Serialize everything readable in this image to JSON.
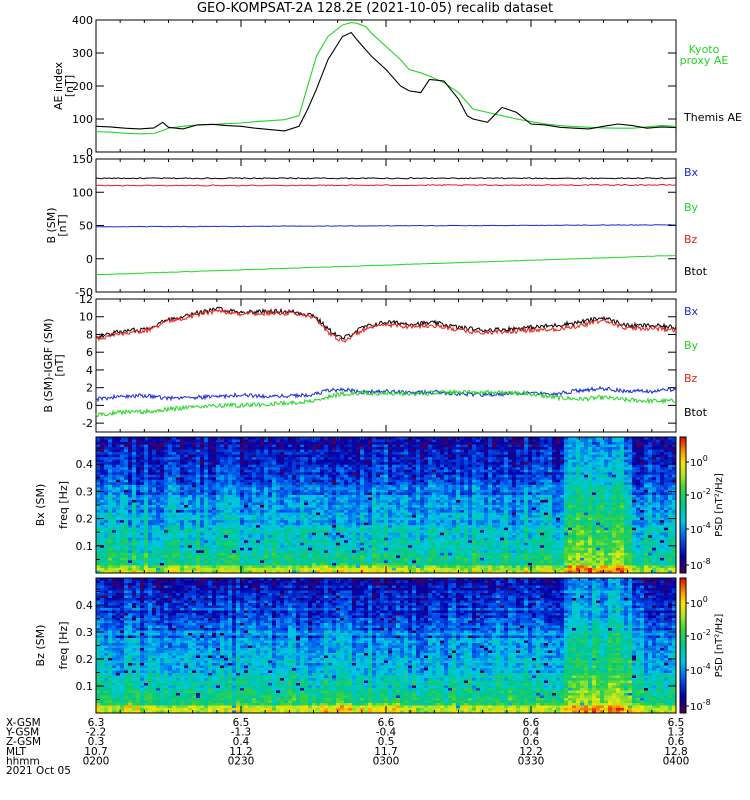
{
  "title": "GEO-KOMPSAT-2A 128.2E (2021-10-05) recalib dataset",
  "colors": {
    "black": "#000000",
    "red": "#e8201a",
    "green": "#22d622",
    "blue": "#1a2ad6",
    "lightgreen": "#33e833"
  },
  "chart_data": [
    {
      "type": "line",
      "panel": "ae",
      "ylabel": "AE index",
      "yunit": "[nT]",
      "ylim": [
        0,
        400
      ],
      "yticks": [
        0,
        100,
        200,
        300,
        400
      ],
      "x_hours": [
        2.0,
        2.05,
        2.1,
        2.15,
        2.2,
        2.23,
        2.25,
        2.3,
        2.35,
        2.4,
        2.45,
        2.5,
        2.55,
        2.6,
        2.65,
        2.7,
        2.73,
        2.76,
        2.8,
        2.85,
        2.88,
        2.9,
        2.93,
        2.95,
        3.0,
        3.05,
        3.08,
        3.12,
        3.15,
        3.2,
        3.25,
        3.28,
        3.3,
        3.35,
        3.4,
        3.45,
        3.5,
        3.55,
        3.6,
        3.65,
        3.7,
        3.75,
        3.8,
        3.85,
        3.9,
        3.95,
        4.0
      ],
      "series": [
        {
          "name": "Kyoto proxy AE",
          "legend": [
            "Kyoto",
            "proxy AE"
          ],
          "color": "green",
          "values": [
            62,
            60,
            57,
            55,
            56,
            65,
            72,
            78,
            82,
            83,
            86,
            88,
            92,
            95,
            98,
            110,
            200,
            290,
            350,
            385,
            392,
            390,
            380,
            360,
            320,
            280,
            250,
            240,
            230,
            210,
            180,
            150,
            130,
            120,
            110,
            100,
            92,
            85,
            80,
            77,
            75,
            73,
            72,
            72,
            76,
            80,
            78
          ]
        },
        {
          "name": "Themis AE",
          "legend": [
            "Themis AE"
          ],
          "color": "black",
          "values": [
            78,
            76,
            72,
            70,
            73,
            90,
            75,
            70,
            82,
            84,
            80,
            78,
            72,
            68,
            64,
            78,
            130,
            190,
            280,
            350,
            362,
            340,
            310,
            290,
            250,
            200,
            185,
            180,
            220,
            215,
            160,
            110,
            100,
            90,
            135,
            120,
            85,
            82,
            75,
            72,
            70,
            78,
            85,
            80,
            72,
            76,
            74
          ]
        }
      ]
    },
    {
      "type": "line",
      "panel": "b",
      "ylabel": "B (SM)",
      "yunit": "[nT]",
      "ylim": [
        -50,
        150
      ],
      "yticks": [
        -50,
        0,
        50,
        100,
        150
      ],
      "legend": [
        {
          "name": "Bx",
          "color": "blue"
        },
        {
          "name": "By",
          "color": "green"
        },
        {
          "name": "Bz",
          "color": "red"
        },
        {
          "name": "Btot",
          "color": "black"
        }
      ],
      "series": [
        {
          "name": "Btot",
          "color": "black",
          "start": 121,
          "end": 121,
          "noise": 0.8
        },
        {
          "name": "Bz",
          "color": "red",
          "start": 110,
          "end": 111,
          "noise": 0.8
        },
        {
          "name": "Bx",
          "color": "blue",
          "start": 48,
          "end": 51,
          "noise": 0.4
        },
        {
          "name": "By",
          "color": "green",
          "start": -24,
          "end": 5,
          "noise": 0.3
        }
      ]
    },
    {
      "type": "line",
      "panel": "db",
      "ylabel": "B (SM)-IGRF (SM)",
      "yunit": "[nT]",
      "ylim": [
        -3,
        12
      ],
      "yticks": [
        -2,
        0,
        2,
        4,
        6,
        8,
        10,
        12
      ],
      "legend": [
        {
          "name": "Bx",
          "color": "blue"
        },
        {
          "name": "By",
          "color": "green"
        },
        {
          "name": "Bz",
          "color": "red"
        },
        {
          "name": "Btot",
          "color": "black"
        }
      ],
      "x_hours": [
        2.0,
        2.08,
        2.17,
        2.25,
        2.33,
        2.42,
        2.5,
        2.58,
        2.67,
        2.75,
        2.8,
        2.85,
        2.92,
        3.0,
        3.08,
        3.17,
        3.25,
        3.33,
        3.42,
        3.5,
        3.58,
        3.67,
        3.75,
        3.83,
        3.92,
        4.0
      ],
      "series": [
        {
          "name": "Btot",
          "color": "black",
          "noise": 0.25,
          "values": [
            7.7,
            8.3,
            8.6,
            9.7,
            10.3,
            10.9,
            10.5,
            10.6,
            10.6,
            10.2,
            8.6,
            7.5,
            8.8,
            9.4,
            9.2,
            9.3,
            8.8,
            8.5,
            8.6,
            8.8,
            9.0,
            9.4,
            9.9,
            9.0,
            9.0,
            8.8
          ]
        },
        {
          "name": "Bz",
          "color": "red",
          "noise": 0.25,
          "values": [
            7.5,
            8.1,
            8.4,
            9.5,
            10.1,
            10.7,
            10.3,
            10.4,
            10.4,
            10.0,
            8.3,
            7.2,
            8.5,
            9.1,
            8.9,
            9.0,
            8.5,
            8.2,
            8.3,
            8.5,
            8.6,
            9.0,
            9.6,
            8.7,
            8.7,
            8.5
          ]
        },
        {
          "name": "Bx",
          "color": "blue",
          "noise": 0.22,
          "values": [
            0.7,
            1.0,
            1.1,
            0.8,
            0.9,
            1.0,
            1.2,
            1.0,
            1.1,
            1.2,
            1.7,
            1.8,
            1.5,
            1.6,
            1.4,
            1.5,
            1.3,
            1.2,
            1.3,
            1.5,
            1.3,
            1.7,
            1.9,
            1.6,
            1.6,
            1.8
          ]
        },
        {
          "name": "By",
          "color": "green",
          "noise": 0.25,
          "values": [
            -1.1,
            -0.8,
            -0.7,
            -0.4,
            -0.2,
            0.0,
            0.0,
            0.1,
            0.3,
            0.5,
            1.0,
            1.3,
            1.4,
            1.3,
            1.3,
            1.4,
            1.5,
            1.5,
            1.4,
            1.3,
            0.9,
            0.7,
            0.9,
            0.6,
            0.5,
            0.5
          ]
        }
      ]
    },
    {
      "type": "heatmap",
      "panel": "bx_spec",
      "ylabel": "Bx (SM)",
      "yunit": "freq [Hz]",
      "ylim": [
        0,
        0.5
      ],
      "yticks": [
        0.1,
        0.2,
        0.3,
        0.4
      ],
      "colorbar": {
        "label": "PSD [nT²/Hz]",
        "ticks": [
          "10^0",
          "10^-2",
          "10^-4",
          "10^-8"
        ]
      }
    },
    {
      "type": "heatmap",
      "panel": "bz_spec",
      "ylabel": "Bz (SM)",
      "yunit": "freq [Hz]",
      "ylim": [
        0,
        0.5
      ],
      "yticks": [
        0.1,
        0.2,
        0.3,
        0.4
      ],
      "colorbar": {
        "label": "PSD [nT²/Hz]",
        "ticks": [
          "10^0",
          "10^-2",
          "10^-4",
          "10^-8"
        ]
      }
    }
  ],
  "footer": {
    "rows": [
      {
        "label": "X-GSM",
        "values": [
          "6.3",
          "6.5",
          "6.6",
          "6.6",
          "6.5"
        ]
      },
      {
        "label": "Y-GSM",
        "values": [
          "-2.2",
          "-1.3",
          "-0.4",
          "0.4",
          "1.3"
        ]
      },
      {
        "label": "Z-GSM",
        "values": [
          "0.3",
          "0.4",
          "0.5",
          "0.6",
          "0.6"
        ]
      },
      {
        "label": "MLT",
        "values": [
          "10.7",
          "11.2",
          "11.7",
          "12.2",
          "12.8"
        ]
      },
      {
        "label": "hhmm",
        "values": [
          "0200",
          "0230",
          "0300",
          "0330",
          "0400"
        ]
      }
    ],
    "date": "2021 Oct 05"
  }
}
